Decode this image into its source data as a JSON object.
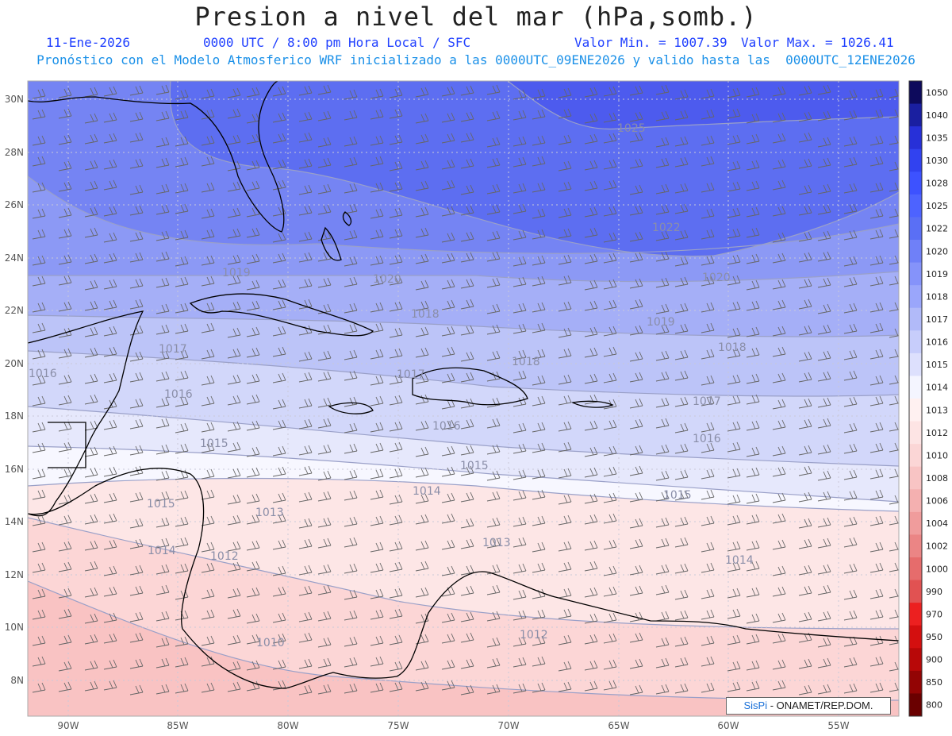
{
  "header": {
    "title": "Presion a nivel del mar (hPa,somb.)",
    "date": "11-Ene-2026",
    "time_info": "0000 UTC / 8:00 pm Hora Local / SFC",
    "min_label": "Valor Min. = 1007.39",
    "max_label": "Valor Max. = 1026.41",
    "model_info": "Pronóstico con el Modelo Atmosferico WRF inicializado a las 0000UTC_09ENE2026 y valido hasta las  0000UTC_12ENE2026"
  },
  "map": {
    "lat_labels": [
      "30N",
      "28N",
      "26N",
      "24N",
      "22N",
      "20N",
      "18N",
      "16N",
      "14N",
      "12N",
      "10N",
      "8N"
    ],
    "lon_labels": [
      "90W",
      "85W",
      "80W",
      "75W",
      "70W",
      "65W",
      "60W",
      "55W"
    ],
    "contour_labels": [
      "1025",
      "1022",
      "1020",
      "1020",
      "1019",
      "1019",
      "1018",
      "1018",
      "1018",
      "1017",
      "1017",
      "1017",
      "1016",
      "1016",
      "1016",
      "1016",
      "1015",
      "1015",
      "1015",
      "1015",
      "1014",
      "1014",
      "1014",
      "1013",
      "1013",
      "1012",
      "1012",
      "1010"
    ]
  },
  "colorbar": {
    "levels": [
      "1050",
      "1040",
      "1035",
      "1030",
      "1028",
      "1025",
      "1022",
      "1020",
      "1019",
      "1018",
      "1017",
      "1016",
      "1015",
      "1014",
      "1013",
      "1012",
      "1010",
      "1008",
      "1006",
      "1004",
      "1002",
      "1000",
      "990",
      "970",
      "950",
      "900",
      "850",
      "800"
    ],
    "colors": [
      "#0d0a5c",
      "#1a1fa0",
      "#2730d8",
      "#3142f0",
      "#3d52ff",
      "#4d63ff",
      "#5a6ff5",
      "#6f80f8",
      "#8593fa",
      "#9aa6fb",
      "#b1baf9",
      "#c7cdfb",
      "#dde0fd",
      "#f4f5ff",
      "#fff1f1",
      "#fde4e4",
      "#fbd6d6",
      "#f8c4c4",
      "#f4b0b0",
      "#f09c9c",
      "#eb8585",
      "#e66c6c",
      "#e15252",
      "#ec2020",
      "#d40f0f",
      "#b80808",
      "#930404",
      "#6a0000"
    ]
  },
  "credit": {
    "logo_text": "SisPi",
    "text": " - ONAMET/REP.DOM."
  }
}
